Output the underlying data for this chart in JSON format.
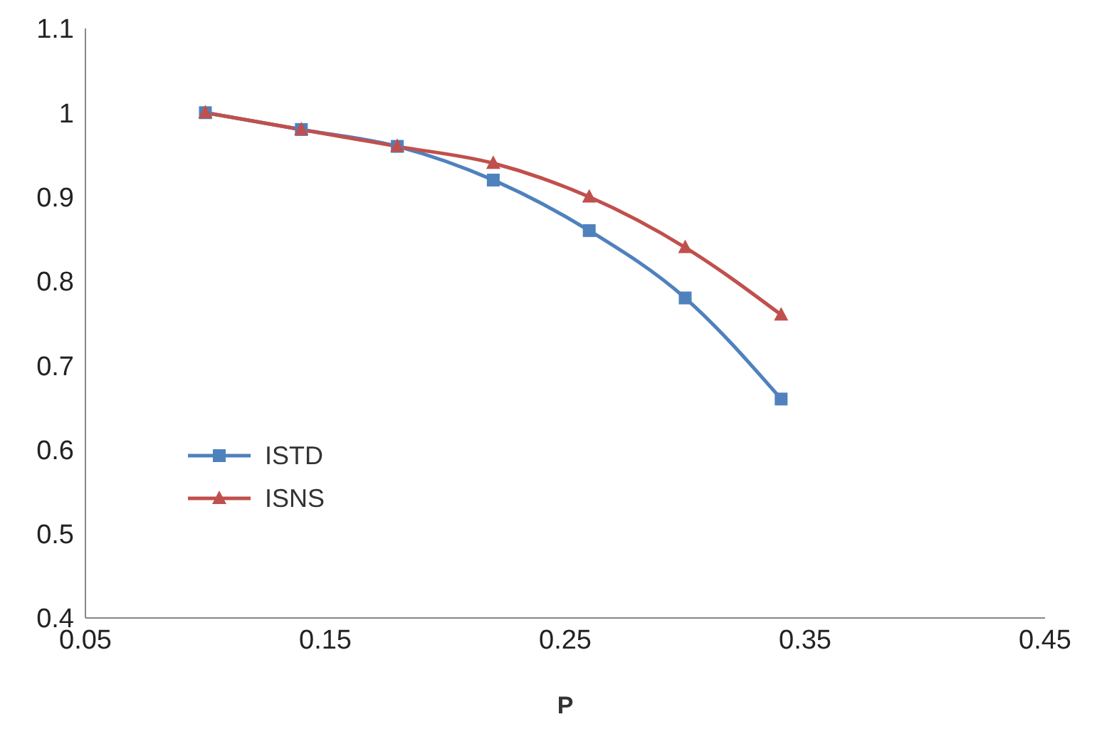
{
  "chart_data": {
    "type": "line",
    "xlabel": "P",
    "x": [
      0.1,
      0.14,
      0.18,
      0.22,
      0.26,
      0.3,
      0.34
    ],
    "series": [
      {
        "name": "ISTD",
        "color": "#4f81bd",
        "marker": "square",
        "values": [
          1.0,
          0.98,
          0.96,
          0.92,
          0.86,
          0.78,
          0.66
        ]
      },
      {
        "name": "ISNS",
        "color": "#c0504d",
        "marker": "triangle",
        "values": [
          1.0,
          0.98,
          0.96,
          0.94,
          0.9,
          0.84,
          0.76
        ]
      }
    ],
    "xlim": [
      0.05,
      0.45
    ],
    "xticks": [
      0.05,
      0.15,
      0.25,
      0.35,
      0.45
    ],
    "ylim": [
      0.4,
      1.1
    ],
    "yticks": [
      0.4,
      0.5,
      0.6,
      0.7,
      0.8,
      0.9,
      1,
      1.1
    ],
    "grid": false,
    "legend": "bottom left",
    "line_style": "solid"
  }
}
